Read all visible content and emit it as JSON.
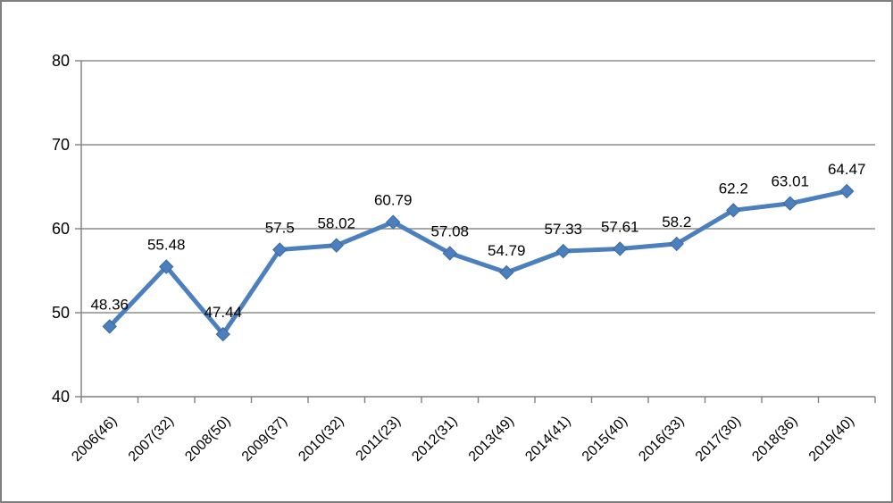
{
  "chart_data": {
    "type": "line",
    "title": "",
    "xlabel": "",
    "ylabel": "",
    "categories": [
      "2006(46)",
      "2007(32)",
      "2008(50)",
      "2009(37)",
      "2010(32)",
      "2011(23)",
      "2012(31)",
      "2013(49)",
      "2014(41)",
      "2015(40)",
      "2016(33)",
      "2017(30)",
      "2018(36)",
      "2019(40)"
    ],
    "values": [
      48.36,
      55.48,
      47.44,
      57.5,
      58.02,
      60.79,
      57.08,
      54.79,
      57.33,
      57.61,
      58.2,
      62.2,
      63.01,
      64.47
    ],
    "point_labels": [
      "48.36",
      "55.48",
      "47.44",
      "57.5",
      "58.02",
      "60.79",
      "57.08",
      "54.79",
      "57.33",
      "57.61",
      "58.2",
      "62.2",
      "63.01",
      "64.47"
    ],
    "ylim": [
      40,
      80
    ],
    "yticks": [
      "40",
      "50",
      "60",
      "70",
      "80"
    ],
    "grid": true,
    "legend": false,
    "marker": "diamond",
    "x_label_rotation_deg": -45,
    "colors": {
      "series": "#4c7fbe",
      "marker_edge": "#3c689c",
      "gridline": "#8e8e8e",
      "axis": "#7f7f7f",
      "text": "#000000",
      "background": "#ffffff",
      "frame_border": "#7f7f7f"
    }
  }
}
